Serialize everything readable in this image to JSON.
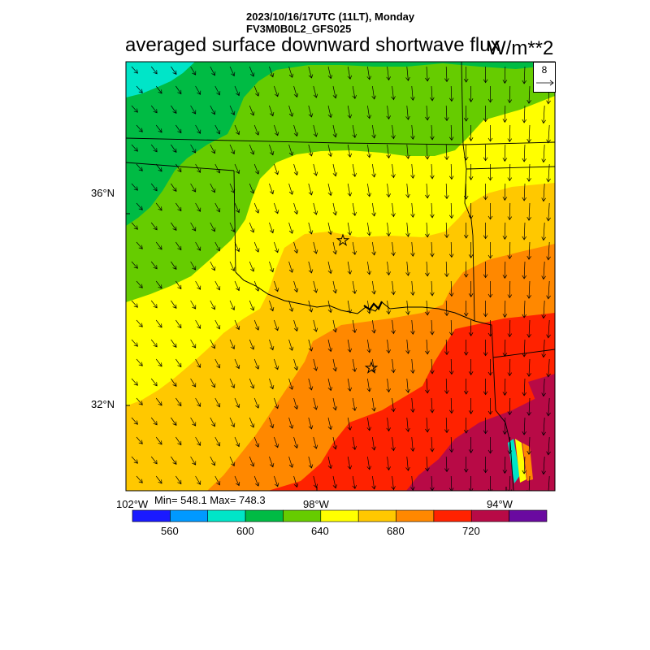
{
  "header": {
    "datetime": "2023/10/16/17UTC (11LT), Monday",
    "model": "FV3M0B0L2_GFS025",
    "title": "averaged surface downward shortwave flux",
    "units": "W/m**2"
  },
  "vector_key": {
    "value": "8"
  },
  "stats": {
    "text": "Min= 548.1 Max= 748.3",
    "min": 548.1,
    "max": 748.3
  },
  "axes": {
    "lat_labels": [
      "36°N",
      "32°N"
    ],
    "lon_labels": [
      "102°W",
      "98°W",
      "94°W"
    ]
  },
  "colorbar": {
    "labels": [
      "560",
      "600",
      "640",
      "680",
      "720"
    ],
    "colors": [
      "#1a1aff",
      "#0099ff",
      "#00e5c8",
      "#00bb44",
      "#66cc00",
      "#ffff00",
      "#ffc800",
      "#ff8800",
      "#ff2200",
      "#b80a46",
      "#6a0aa0"
    ],
    "levels": [
      540,
      560,
      580,
      600,
      620,
      640,
      660,
      680,
      700,
      720,
      740,
      760
    ]
  },
  "field_colors": {
    "cyan": "#00e5c8",
    "dkgreen": "#00bb44",
    "ltgreen": "#66cc00",
    "yellow": "#ffff00",
    "gold": "#ffc800",
    "orange": "#ff8800",
    "red": "#ff2200",
    "maroon": "#b80a46"
  },
  "markers": [
    "star-oklahoma-city",
    "star-dallas"
  ]
}
